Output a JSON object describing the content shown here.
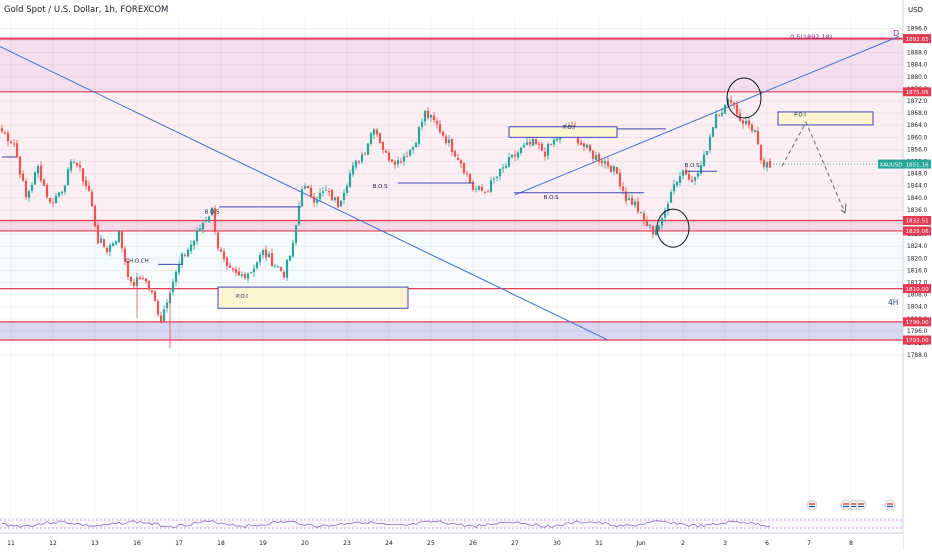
{
  "header": {
    "title": "Gold Spot / U.S. Dollar, 1h, FOREXCOM",
    "currency": "USD"
  },
  "colors": {
    "bull": "#26a69a",
    "bear": "#ef5350",
    "level_line": "#e53950",
    "trendline": "#3d6fd6",
    "zone_top_fill": "#f4dfee",
    "zone_pink_fill": "#fbeff3",
    "zone_blue_fill": "#d8d8f2",
    "poi_fill": "#fdf4d2",
    "poi_stroke": "#3f46b8",
    "price_badge": "#e53950",
    "current_badge": "#26a69a"
  },
  "chart_data": {
    "type": "candlestick",
    "title": "Gold Spot / U.S. Dollar, 1h, FOREXCOM",
    "y_axis": {
      "unit": "USD",
      "ylim": [
        1785,
        1900
      ],
      "ticks": [
        1788.0,
        1792.0,
        1796.0,
        1800.0,
        1804.0,
        1808.0,
        1812.0,
        1816.0,
        1820.0,
        1824.0,
        1828.0,
        1832.0,
        1836.0,
        1840.0,
        1844.0,
        1848.0,
        1852.0,
        1856.0,
        1860.0,
        1864.0,
        1868.0,
        1872.0,
        1876.0,
        1880.0,
        1884.0,
        1888.0,
        1892.0,
        1896.0
      ]
    },
    "x_axis": {
      "ticks": [
        {
          "label": "11",
          "i": 3
        },
        {
          "label": "12",
          "i": 17
        },
        {
          "label": "13",
          "i": 31
        },
        {
          "label": "16",
          "i": 45
        },
        {
          "label": "17",
          "i": 59
        },
        {
          "label": "18",
          "i": 73
        },
        {
          "label": "19",
          "i": 87
        },
        {
          "label": "20",
          "i": 101
        },
        {
          "label": "23",
          "i": 115
        },
        {
          "label": "24",
          "i": 129
        },
        {
          "label": "25",
          "i": 143
        },
        {
          "label": "26",
          "i": 157
        },
        {
          "label": "27",
          "i": 171
        },
        {
          "label": "30",
          "i": 185
        },
        {
          "label": "31",
          "i": 199
        },
        {
          "label": "Jun",
          "i": 213
        },
        {
          "label": "2",
          "i": 227
        },
        {
          "label": "3",
          "i": 241
        },
        {
          "label": "6",
          "i": 255
        },
        {
          "label": "7",
          "i": 269
        },
        {
          "label": "8",
          "i": 283
        }
      ]
    },
    "anchors": [
      {
        "i": 0,
        "p": 1862
      },
      {
        "i": 4,
        "p": 1858
      },
      {
        "i": 8,
        "p": 1840
      },
      {
        "i": 12,
        "p": 1850
      },
      {
        "i": 16,
        "p": 1838
      },
      {
        "i": 20,
        "p": 1843
      },
      {
        "i": 24,
        "p": 1853
      },
      {
        "i": 29,
        "p": 1842
      },
      {
        "i": 32,
        "p": 1826
      },
      {
        "i": 35,
        "p": 1823
      },
      {
        "i": 39,
        "p": 1828
      },
      {
        "i": 43,
        "p": 1811
      },
      {
        "i": 47,
        "p": 1814
      },
      {
        "i": 50,
        "p": 1808
      },
      {
        "i": 53,
        "p": 1800
      },
      {
        "i": 56,
        "p": 1810
      },
      {
        "i": 60,
        "p": 1820
      },
      {
        "i": 64,
        "p": 1826
      },
      {
        "i": 67,
        "p": 1832
      },
      {
        "i": 70,
        "p": 1836
      },
      {
        "i": 72,
        "p": 1824
      },
      {
        "i": 75,
        "p": 1816
      },
      {
        "i": 79,
        "p": 1814
      },
      {
        "i": 83,
        "p": 1816
      },
      {
        "i": 87,
        "p": 1822
      },
      {
        "i": 91,
        "p": 1818
      },
      {
        "i": 94,
        "p": 1815
      },
      {
        "i": 97,
        "p": 1824
      },
      {
        "i": 100,
        "p": 1844
      },
      {
        "i": 104,
        "p": 1840
      },
      {
        "i": 108,
        "p": 1842
      },
      {
        "i": 112,
        "p": 1838
      },
      {
        "i": 116,
        "p": 1848
      },
      {
        "i": 121,
        "p": 1856
      },
      {
        "i": 124,
        "p": 1864
      },
      {
        "i": 128,
        "p": 1854
      },
      {
        "i": 132,
        "p": 1852
      },
      {
        "i": 137,
        "p": 1857
      },
      {
        "i": 141,
        "p": 1868
      },
      {
        "i": 145,
        "p": 1864
      },
      {
        "i": 149,
        "p": 1858
      },
      {
        "i": 153,
        "p": 1852
      },
      {
        "i": 157,
        "p": 1843
      },
      {
        "i": 161,
        "p": 1842
      },
      {
        "i": 165,
        "p": 1847
      },
      {
        "i": 169,
        "p": 1852
      },
      {
        "i": 173,
        "p": 1856
      },
      {
        "i": 177,
        "p": 1858
      },
      {
        "i": 181,
        "p": 1855
      },
      {
        "i": 185,
        "p": 1860
      },
      {
        "i": 189,
        "p": 1864
      },
      {
        "i": 193,
        "p": 1858
      },
      {
        "i": 197,
        "p": 1854
      },
      {
        "i": 201,
        "p": 1852
      },
      {
        "i": 205,
        "p": 1848
      },
      {
        "i": 208,
        "p": 1840
      },
      {
        "i": 211,
        "p": 1838
      },
      {
        "i": 214,
        "p": 1832
      },
      {
        "i": 217,
        "p": 1829
      },
      {
        "i": 220,
        "p": 1832
      },
      {
        "i": 223,
        "p": 1843
      },
      {
        "i": 227,
        "p": 1849
      },
      {
        "i": 231,
        "p": 1846
      },
      {
        "i": 234,
        "p": 1853
      },
      {
        "i": 238,
        "p": 1868
      },
      {
        "i": 241,
        "p": 1870
      },
      {
        "i": 243,
        "p": 1873
      },
      {
        "i": 246,
        "p": 1866
      },
      {
        "i": 249,
        "p": 1864
      },
      {
        "i": 251,
        "p": 1862
      },
      {
        "i": 253,
        "p": 1851
      },
      {
        "i": 256,
        "p": 1850
      }
    ],
    "last_index": 256,
    "future_index": 290,
    "levels": [
      {
        "price": 1892.65,
        "label": "1892.65"
      },
      {
        "price": 1875.05,
        "label": "1875.05"
      },
      {
        "price": 1832.51,
        "label": "1832.51"
      },
      {
        "price": 1829.06,
        "label": "1829.06"
      },
      {
        "price": 1810.0,
        "label": "1810.00"
      },
      {
        "price": 1799.0,
        "label": "1799.00"
      },
      {
        "price": 1793.0,
        "label": "1793.00"
      }
    ],
    "current_price": {
      "symbol": "XAUUSD",
      "value": "1851.16",
      "price": 1851.16
    },
    "fib_label": "0.5(1892.18)",
    "point_label": "D",
    "timeframe_label": "4H",
    "annotations": [
      {
        "text": "B.O.S",
        "i": 70,
        "p": 1834.8
      },
      {
        "text": "B.O.S",
        "i": 126,
        "p": 1843.3
      },
      {
        "text": "B.O.S",
        "i": 183,
        "p": 1839.6
      },
      {
        "text": "B.O.S",
        "i": 230,
        "p": 1850.2
      },
      {
        "text": "CH.O.CH",
        "i": 45,
        "p": 1818.6
      },
      {
        "text": "P.O.I",
        "i": 80,
        "p": 1806.9
      },
      {
        "text": "P.O.I",
        "i": 189,
        "p": 1862.8
      },
      {
        "text": "P.O.I",
        "i": 266,
        "p": 1866.9
      }
    ]
  }
}
